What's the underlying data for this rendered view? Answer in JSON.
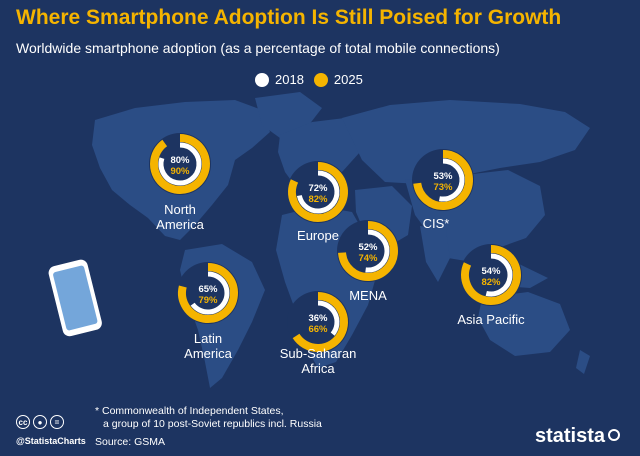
{
  "header": {
    "title": "Where Smartphone Adoption Is Still Poised for Growth",
    "subtitle": "Worldwide smartphone adoption (as a percentage of total mobile connections)"
  },
  "legend": {
    "items": [
      {
        "label": "2018",
        "color": "#ffffff"
      },
      {
        "label": "2025",
        "color": "#f5b400"
      }
    ]
  },
  "colors": {
    "background": "#1d3461",
    "map": "#2b4d85",
    "ring_2018": "#ffffff",
    "ring_2025": "#f5b400"
  },
  "chart_data": {
    "type": "donut",
    "title": "Where Smartphone Adoption Is Still Poised for Growth",
    "subtitle": "Worldwide smartphone adoption (as a percentage of total mobile connections)",
    "unit": "%",
    "series": [
      {
        "name": "2018",
        "color": "#ffffff"
      },
      {
        "name": "2025",
        "color": "#f5b400"
      }
    ],
    "regions": [
      {
        "name": "North America",
        "label_lines": [
          "North",
          "America"
        ],
        "v2018": 80,
        "v2025": 90,
        "label_2018": "80%",
        "label_2025": "90%"
      },
      {
        "name": "Europe",
        "label_lines": [
          "Europe"
        ],
        "v2018": 72,
        "v2025": 82,
        "label_2018": "72%",
        "label_2025": "82%"
      },
      {
        "name": "CIS*",
        "label_lines": [
          "CIS*"
        ],
        "v2018": 53,
        "v2025": 73,
        "label_2018": "53%",
        "label_2025": "73%"
      },
      {
        "name": "MENA",
        "label_lines": [
          "MENA"
        ],
        "v2018": 52,
        "v2025": 74,
        "label_2018": "52%",
        "label_2025": "74%"
      },
      {
        "name": "Latin America",
        "label_lines": [
          "Latin",
          "America"
        ],
        "v2018": 65,
        "v2025": 79,
        "label_2018": "65%",
        "label_2025": "79%"
      },
      {
        "name": "Asia Pacific",
        "label_lines": [
          "Asia Pacific"
        ],
        "v2018": 54,
        "v2025": 82,
        "label_2018": "54%",
        "label_2025": "82%"
      },
      {
        "name": "Sub-Saharan Africa",
        "label_lines": [
          "Sub-Saharan",
          "Africa"
        ],
        "v2018": 36,
        "v2025": 66,
        "label_2018": "36%",
        "label_2025": "66%"
      }
    ]
  },
  "footnote": {
    "line1": "* Commonwealth of Independent States,",
    "line2": "a group of 10 post-Soviet republics incl. Russia"
  },
  "source": "Source: GSMA",
  "social": {
    "handle": "@StatistaCharts",
    "icons": [
      "cc-icon",
      "by-icon",
      "nd-icon"
    ]
  },
  "brand": "statista"
}
